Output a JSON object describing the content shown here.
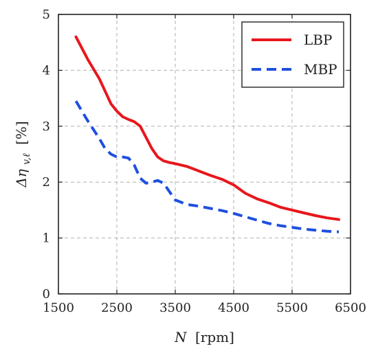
{
  "chart_data": {
    "type": "line",
    "xlabel_symbol": "N",
    "xlabel_unit": "[rpm]",
    "ylabel_symbol": "Δη",
    "ylabel_subscript": "v,ℓ",
    "ylabel_unit": "[%]",
    "xlim": [
      1500,
      6500
    ],
    "ylim": [
      0,
      5
    ],
    "xticks": [
      1500,
      2500,
      3500,
      4500,
      5500,
      6500
    ],
    "yticks": [
      0,
      1,
      2,
      3,
      4,
      5
    ],
    "grid": true,
    "legend_position": "top-right",
    "series": [
      {
        "name": "LBP",
        "color": "#e8161c",
        "style": "solid",
        "x": [
          1800,
          2000,
          2200,
          2400,
          2500,
          2600,
          2700,
          2800,
          2900,
          3000,
          3100,
          3200,
          3300,
          3400,
          3500,
          3700,
          3900,
          4100,
          4300,
          4500,
          4700,
          4900,
          5100,
          5300,
          5500,
          5700,
          5900,
          6100,
          6300
        ],
        "y": [
          4.6,
          4.2,
          3.85,
          3.4,
          3.27,
          3.17,
          3.12,
          3.08,
          3.0,
          2.8,
          2.6,
          2.45,
          2.38,
          2.35,
          2.33,
          2.28,
          2.2,
          2.12,
          2.05,
          1.95,
          1.8,
          1.7,
          1.63,
          1.55,
          1.5,
          1.45,
          1.4,
          1.36,
          1.33
        ]
      },
      {
        "name": "MBP",
        "color": "#1e4fe0",
        "style": "dashed",
        "x": [
          1800,
          2000,
          2200,
          2300,
          2400,
          2500,
          2600,
          2700,
          2800,
          2900,
          3000,
          3100,
          3200,
          3300,
          3400,
          3500,
          3700,
          3900,
          4100,
          4300,
          4500,
          4700,
          4900,
          5100,
          5300,
          5500,
          5700,
          5900,
          6100,
          6300
        ],
        "y": [
          3.45,
          3.1,
          2.78,
          2.6,
          2.5,
          2.45,
          2.45,
          2.43,
          2.3,
          2.07,
          1.98,
          2.0,
          2.03,
          1.98,
          1.83,
          1.68,
          1.6,
          1.57,
          1.53,
          1.49,
          1.44,
          1.38,
          1.32,
          1.26,
          1.22,
          1.19,
          1.16,
          1.14,
          1.12,
          1.11
        ]
      }
    ]
  }
}
